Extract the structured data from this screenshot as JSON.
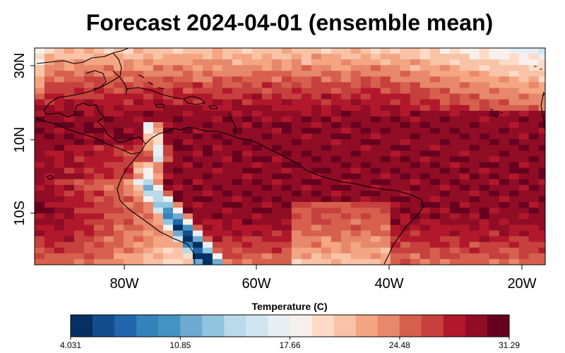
{
  "map": {
    "title": "Forecast 2024-04-01 (ensemble mean)",
    "lat_labels": [
      "30N",
      "10N",
      "10S"
    ],
    "lon_labels": [
      "80W",
      "60W",
      "40W",
      "20W"
    ],
    "lat_values": [
      30,
      10,
      -10
    ],
    "lon_values": [
      -80,
      -60,
      -40,
      -20
    ],
    "lon_range": [
      -93.5,
      -16
    ],
    "lat_range": [
      -27,
      30
    ],
    "variable": "Temperature (C)"
  },
  "colorbar": {
    "title": "Temperature (C)",
    "min": 4.031,
    "max": 31.29,
    "tick_labels": [
      "4.031",
      "10.85",
      "17.66",
      "24.48",
      "31.29"
    ],
    "tick_values": [
      4.031,
      10.85,
      17.66,
      24.48,
      31.29
    ],
    "colors": [
      "#053061",
      "#144d8c",
      "#2166ac",
      "#3582bb",
      "#4393c3",
      "#6fabd0",
      "#92c5de",
      "#bad9ea",
      "#d1e5f0",
      "#e8eff4",
      "#f7f0ec",
      "#fddbc7",
      "#f8c3a7",
      "#f4a582",
      "#e7876b",
      "#d6604d",
      "#c6403d",
      "#b2182b",
      "#900d25",
      "#67001f"
    ]
  }
}
